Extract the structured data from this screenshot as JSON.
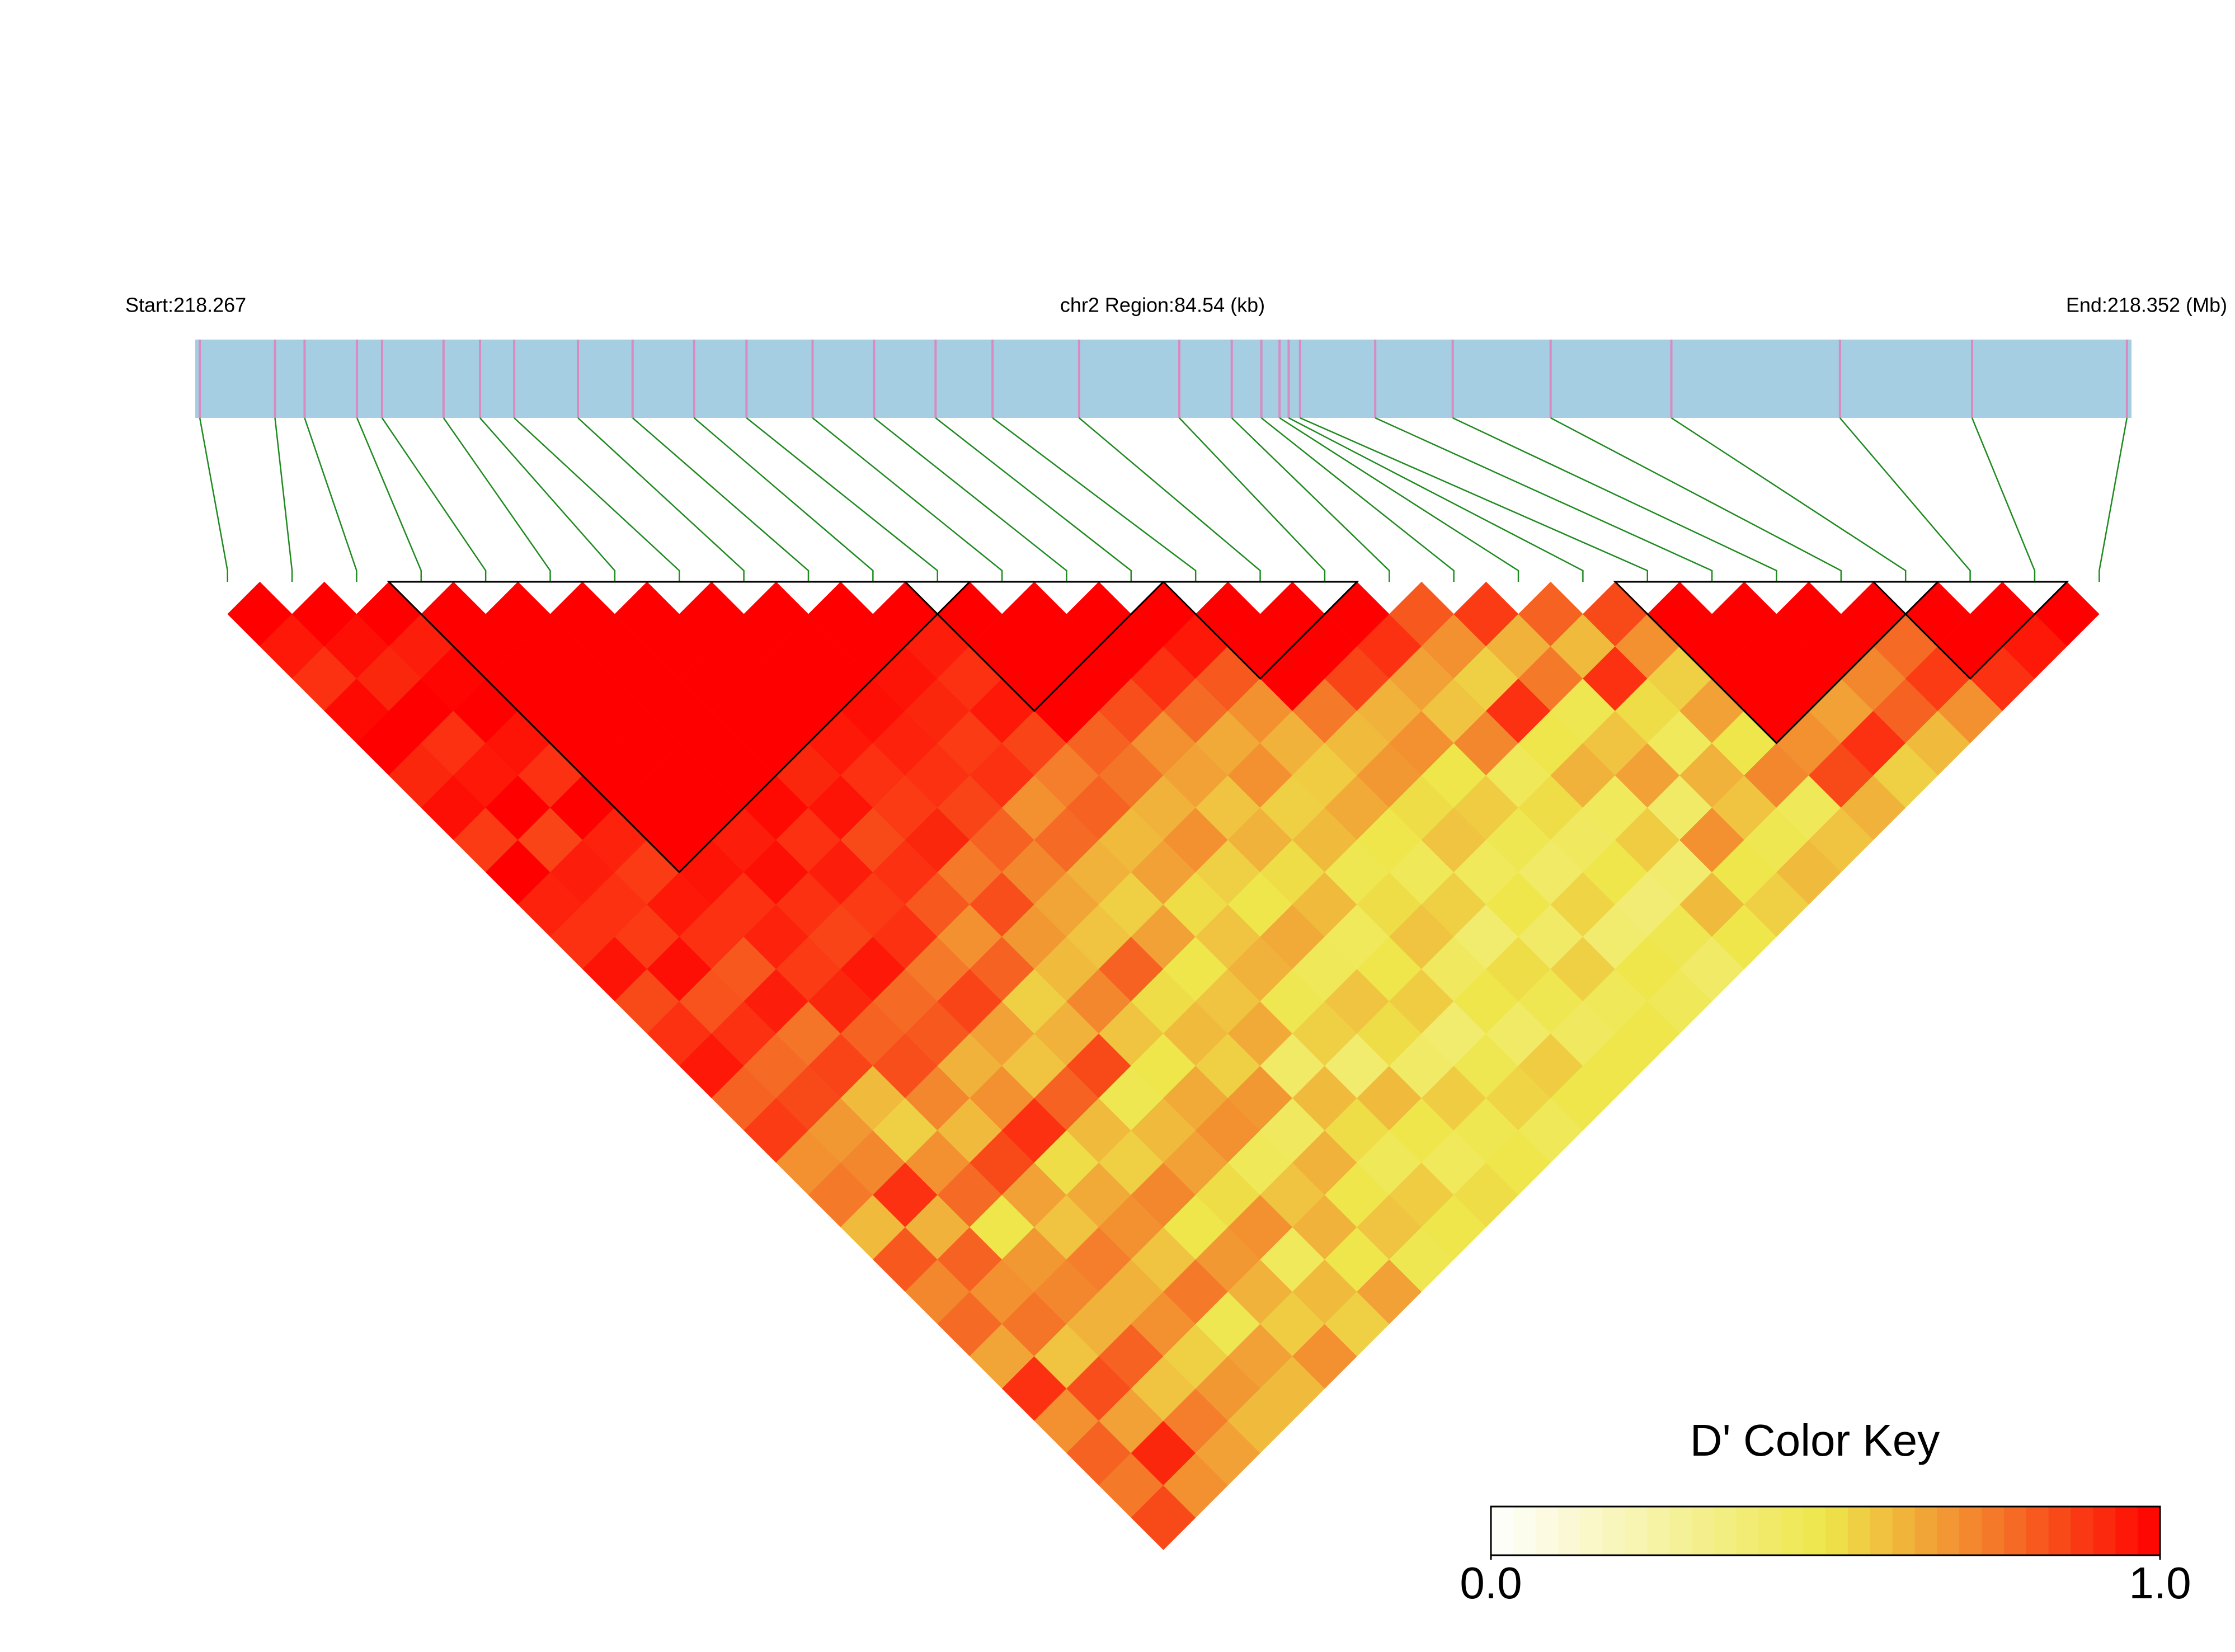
{
  "chart_data": {
    "type": "ld_heatmap",
    "start_label": "Start:218.267",
    "region_label": "chr2 Region:84.54 (kb)",
    "end_label": "End:218.352 (Mb)",
    "xlim": [
      218.267,
      218.352
    ],
    "snp_positions": [
      218.2672,
      218.2705,
      218.2718,
      218.2741,
      218.2752,
      218.2779,
      218.2795,
      218.281,
      218.2838,
      218.2862,
      218.2889,
      218.2912,
      218.2941,
      218.2968,
      218.2995,
      218.302,
      218.3058,
      218.3102,
      218.3125,
      218.3138,
      218.3146,
      218.315,
      218.3155,
      218.3188,
      218.3222,
      218.3265,
      218.3318,
      218.3392,
      218.345,
      218.3518
    ],
    "ld": [
      [
        1,
        0.95,
        0.9,
        0.98,
        1,
        0.92,
        0.97,
        0.88,
        1,
        0.93,
        0.9,
        0.96,
        0.85,
        0.9,
        0.95,
        0.8,
        0.88,
        0.7,
        0.75,
        0.6,
        0.82,
        0.72,
        0.78,
        0.65,
        0.9,
        0.7,
        0.8,
        0.75,
        0.85
      ],
      [
        1,
        0.97,
        0.92,
        1,
        0.9,
        0.95,
        1,
        0.86,
        0.94,
        0.9,
        0.88,
        0.97,
        0.83,
        0.9,
        0.78,
        0.85,
        0.68,
        0.72,
        0.9,
        0.62,
        0.8,
        0.7,
        0.76,
        0.58,
        0.84,
        0.66,
        0.92,
        0.7
      ],
      [
        1,
        0.94,
        0.99,
        1,
        0.96,
        0.9,
        1,
        0.93,
        0.88,
        0.95,
        0.9,
        0.82,
        0.94,
        0.76,
        0.86,
        0.6,
        0.55,
        0.7,
        0.78,
        0.5,
        0.68,
        0.72,
        0.62,
        0.8,
        0.58,
        0.74,
        0.66
      ],
      [
        1,
        1,
        1,
        1,
        1,
        1,
        1,
        1,
        0.96,
        0.9,
        0.93,
        0.88,
        0.92,
        0.8,
        0.84,
        0.72,
        0.6,
        0.85,
        0.66,
        0.58,
        0.74,
        0.62,
        0.7,
        0.55,
        0.68,
        0.6
      ],
      [
        1,
        1,
        1,
        1,
        1,
        1,
        1,
        0.94,
        0.97,
        0.9,
        0.86,
        0.95,
        0.78,
        0.82,
        0.62,
        0.7,
        0.9,
        0.52,
        0.64,
        0.7,
        0.58,
        0.75,
        0.48,
        0.66,
        0.6
      ],
      [
        1,
        1,
        1,
        1,
        1,
        1,
        0.98,
        0.9,
        0.94,
        0.88,
        0.9,
        0.75,
        0.86,
        0.66,
        0.58,
        0.8,
        0.6,
        0.55,
        0.72,
        0.5,
        0.68,
        0.62,
        0.56,
        0.7
      ],
      [
        1,
        1,
        1,
        1,
        1,
        0.92,
        0.96,
        0.85,
        0.9,
        0.82,
        0.7,
        0.8,
        0.55,
        0.62,
        0.85,
        0.48,
        0.6,
        0.66,
        0.52,
        0.7,
        0.45,
        0.6,
        0.55
      ],
      [
        1,
        1,
        1,
        1,
        0.95,
        0.9,
        0.88,
        0.92,
        0.75,
        0.84,
        0.68,
        0.6,
        0.72,
        0.58,
        0.5,
        0.64,
        0.7,
        0.46,
        0.58,
        0.62,
        0.5,
        0.66
      ],
      [
        1,
        1,
        1,
        0.97,
        0.93,
        0.9,
        0.86,
        0.8,
        0.72,
        0.65,
        0.58,
        0.8,
        0.52,
        0.6,
        0.55,
        0.68,
        0.44,
        0.62,
        0.5,
        0.58,
        0.48
      ],
      [
        1,
        1,
        0.96,
        0.92,
        0.88,
        0.9,
        0.7,
        0.78,
        0.62,
        0.55,
        0.66,
        0.5,
        0.58,
        0.64,
        0.42,
        0.6,
        0.52,
        0.46,
        0.56,
        0.5
      ],
      [
        1,
        0.94,
        0.9,
        0.95,
        0.86,
        0.74,
        0.8,
        0.6,
        0.66,
        0.52,
        0.58,
        0.62,
        0.48,
        0.55,
        0.4,
        0.6,
        0.5,
        0.45,
        0.52
      ],
      [
        1,
        1,
        1,
        1,
        0.8,
        0.76,
        0.62,
        0.7,
        0.55,
        0.5,
        0.64,
        0.46,
        0.58,
        0.52,
        0.42,
        0.56,
        0.48,
        0.5
      ],
      [
        1,
        1,
        1,
        0.84,
        0.7,
        0.66,
        0.58,
        0.62,
        0.52,
        0.6,
        0.45,
        0.5,
        0.56,
        0.4,
        0.48,
        0.54,
        0.46
      ],
      [
        1,
        1,
        0.9,
        0.78,
        0.64,
        0.7,
        0.55,
        0.6,
        0.48,
        0.52,
        0.58,
        0.44,
        0.5,
        0.42,
        0.56,
        0.5
      ],
      [
        1,
        0.95,
        0.82,
        0.7,
        0.62,
        0.56,
        0.64,
        0.5,
        0.46,
        0.55,
        0.4,
        0.52,
        0.48,
        0.44,
        0.5
      ],
      [
        1,
        1,
        1,
        0.75,
        0.6,
        0.68,
        0.52,
        0.58,
        0.45,
        0.5,
        0.42,
        0.55,
        0.46,
        0.5
      ],
      [
        1,
        1,
        0.86,
        0.62,
        0.7,
        0.5,
        0.56,
        0.48,
        0.42,
        0.54,
        0.4,
        0.5,
        0.46
      ],
      [
        1,
        0.9,
        0.66,
        0.58,
        0.72,
        0.46,
        0.52,
        0.44,
        0.5,
        0.38,
        0.48,
        0.42
      ],
      [
        0.82,
        0.7,
        0.55,
        0.9,
        0.5,
        0.62,
        0.45,
        0.56,
        0.4,
        0.6,
        0.5
      ],
      [
        0.88,
        0.62,
        0.75,
        0.48,
        0.58,
        0.66,
        0.42,
        0.7,
        0.5,
        0.55
      ],
      [
        0.8,
        0.6,
        0.9,
        0.52,
        0.45,
        0.62,
        0.58,
        0.48,
        0.6
      ],
      [
        0.85,
        0.7,
        0.55,
        0.66,
        0.5,
        0.72,
        0.46,
        0.58
      ],
      [
        1,
        1,
        1,
        1,
        0.7,
        0.85,
        0.62
      ],
      [
        1,
        1,
        1,
        0.66,
        0.9,
        0.55
      ],
      [
        1,
        1,
        0.72,
        0.8,
        0.6
      ],
      [
        1,
        0.78,
        0.88,
        0.7
      ],
      [
        1,
        1,
        0.9
      ],
      [
        1,
        0.95
      ],
      [
        1
      ]
    ],
    "blocks": [
      [
        3,
        11
      ],
      [
        11,
        14
      ],
      [
        15,
        17
      ],
      [
        22,
        26
      ],
      [
        26,
        28
      ]
    ],
    "gene_bar_color": "#a6cee3",
    "snp_stripe_color": "#d98ac0",
    "connector_color": "#1f8a1f",
    "color_stops": [
      {
        "value": 0,
        "color": "#ffffff"
      },
      {
        "value": 0.5,
        "color": "#eee64a"
      },
      {
        "value": 0.75,
        "color": "#f47a2a"
      },
      {
        "value": 1,
        "color": "#ff0000"
      }
    ],
    "key_title": "D' Color Key",
    "key_lim": [
      0,
      1
    ],
    "key_ticks": [
      {
        "value": 0,
        "label": "0.0"
      },
      {
        "value": 1,
        "label": "1.0"
      }
    ]
  }
}
